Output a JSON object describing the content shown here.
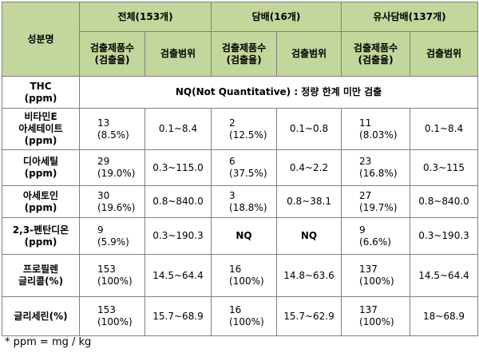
{
  "header": {
    "component_col": "성분명",
    "groups": [
      {
        "title": "전체(153개)"
      },
      {
        "title": "담배(16개)"
      },
      {
        "title": "유사담배(137개)"
      }
    ],
    "count_label_line1": "검출제품수",
    "count_label_line2": "(검출율)",
    "range_label": "검출범위"
  },
  "thc": {
    "name_line1": "THC",
    "name_line2": "(ppm)",
    "note": "NQ(Not Quantitative) : 정량 한계 미만 검출"
  },
  "rows": [
    {
      "name1": "비타민E",
      "name2": "아세테이트",
      "name3": "(ppm)",
      "c1": "13",
      "p1": "(8.5%)",
      "r1": "0.1~8.4",
      "c2": "2",
      "p2": "(12.5%)",
      "r2": "0.1~0.8",
      "c3": "11",
      "p3": "(8.03%)",
      "r3": "0.1~8.4"
    },
    {
      "name1": "디아세틸",
      "name2": "(ppm)",
      "c1": "29",
      "p1": "(19.0%)",
      "r1": "0.3~115.0",
      "c2": "6",
      "p2": "(37.5%)",
      "r2": "0.4~2.2",
      "c3": "23",
      "p3": "(16.8%)",
      "r3": "0.3~115"
    },
    {
      "name1": "아세토인",
      "name2": "(ppm)",
      "c1": "30",
      "p1": "(19.6%)",
      "r1": "0.8~840.0",
      "c2": "3",
      "p2": "(18.8%)",
      "r2": "0.8~38.1",
      "c3": "27",
      "p3": "(19.7%)",
      "r3": "0.8~840.0"
    },
    {
      "name1": "2,3-펜탄디온",
      "name2": "(ppm)",
      "c1": "9",
      "p1": "(5.9%)",
      "r1": "0.3~190.3",
      "c2": "NQ",
      "p2": "",
      "r2": "NQ",
      "c3": "9",
      "p3": "(6.6%)",
      "r3": "0.3~190.3"
    },
    {
      "name1": "프로필렌",
      "name2": "글리콜(%)",
      "c1": "153",
      "p1": "(100%)",
      "r1": "14.5~64.4",
      "c2": "16",
      "p2": "(100%)",
      "r2": "14.8~63.6",
      "c3": "137",
      "p3": "(100%)",
      "r3": "14.5~64.4"
    },
    {
      "name1": "글리세린(%)",
      "c1": "153",
      "p1": "(100%)",
      "r1": "15.7~68.9",
      "c2": "16",
      "p2": "(100%)",
      "r2": "15.7~62.9",
      "c3": "137",
      "p3": "(100%)",
      "r3": "18~68.9"
    }
  ],
  "footnote": "*  ppm  =  mg / kg",
  "colors": {
    "header_bg": "#c3d69b",
    "border": "#808080"
  }
}
